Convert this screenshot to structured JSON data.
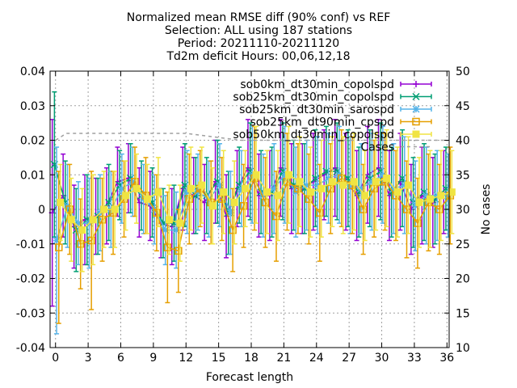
{
  "chart_data": {
    "type": "line",
    "title_lines": [
      "Normalized mean RMSE diff (90% conf) vs REF",
      "Selection: ALL using    187 stations",
      "Period: 20211110-20211120",
      "Td2m deficit    Hours: 00,06,12,18"
    ],
    "xlabel": "Forecast length",
    "ylabel": "",
    "y2label": "No cases",
    "xlim": [
      -0.5,
      36.2
    ],
    "ylim": [
      -0.04,
      0.04
    ],
    "y2lim": [
      10,
      50
    ],
    "x_ticks": [
      0,
      3,
      6,
      9,
      12,
      15,
      18,
      21,
      24,
      27,
      30,
      33,
      36
    ],
    "x_tick_labels": [
      "0",
      "3",
      "6",
      "9",
      "12",
      "15",
      "18",
      "21",
      "24",
      "27",
      "30",
      "33",
      "36"
    ],
    "y_ticks": [
      -0.04,
      -0.03,
      -0.02,
      -0.01,
      0,
      0.01,
      0.02,
      0.03,
      0.04
    ],
    "y_tick_labels": [
      "-0.04",
      "-0.03",
      "-0.02",
      "-0.01",
      "0",
      "0.01",
      "0.02",
      "0.03",
      "0.04"
    ],
    "y2_ticks": [
      10,
      15,
      20,
      25,
      30,
      35,
      40,
      45,
      50
    ],
    "y2_tick_labels": [
      "10",
      "15",
      "20",
      "25",
      "30",
      "35",
      "40",
      "45",
      "50"
    ],
    "grid": true,
    "legend_position": "top-right",
    "x": [
      0,
      1,
      2,
      3,
      4,
      5,
      6,
      7,
      8,
      9,
      10,
      11,
      12,
      13,
      14,
      15,
      16,
      17,
      18,
      19,
      20,
      21,
      22,
      23,
      24,
      25,
      26,
      27,
      28,
      29,
      30,
      31,
      32,
      33,
      34,
      35,
      36
    ],
    "series": [
      {
        "name": "sob0km_dt30min_copolspd",
        "color": "#9400d3",
        "marker": "plus",
        "offset": -0.3,
        "values": [
          -0.001,
          0.004,
          -0.005,
          -0.003,
          -0.002,
          0.001,
          0.008,
          0.009,
          0.002,
          0.001,
          -0.004,
          -0.005,
          0.006,
          0.004,
          0.002,
          0.008,
          -0.002,
          0.006,
          0.012,
          0.004,
          0.004,
          0.012,
          0.006,
          0.006,
          0.008,
          0.01,
          0.012,
          0.008,
          0.004,
          0.01,
          0.012,
          0.004,
          0.008,
          0.0,
          0.004,
          0.002,
          0.005
        ],
        "err": [
          0.027,
          0.012,
          0.012,
          0.013,
          0.011,
          0.011,
          0.01,
          0.01,
          0.01,
          0.01,
          0.01,
          0.011,
          0.012,
          0.011,
          0.011,
          0.012,
          0.012,
          0.011,
          0.014,
          0.012,
          0.013,
          0.014,
          0.013,
          0.013,
          0.014,
          0.013,
          0.014,
          0.014,
          0.013,
          0.014,
          0.014,
          0.013,
          0.014,
          0.013,
          0.014,
          0.013,
          0.012
        ]
      },
      {
        "name": "sob25km_dt30min_copolspd",
        "color": "#009e73",
        "marker": "cross",
        "offset": -0.1,
        "values": [
          0.013,
          0.002,
          -0.006,
          -0.003,
          -0.002,
          0.002,
          0.007,
          0.009,
          0.004,
          0.002,
          -0.004,
          -0.004,
          0.007,
          0.004,
          0.004,
          0.008,
          -0.001,
          0.007,
          0.011,
          0.005,
          0.005,
          0.011,
          0.007,
          0.006,
          0.009,
          0.011,
          0.011,
          0.009,
          0.005,
          0.009,
          0.011,
          0.005,
          0.009,
          0.002,
          0.005,
          0.003,
          0.006
        ],
        "err": [
          0.021,
          0.012,
          0.012,
          0.013,
          0.011,
          0.011,
          0.01,
          0.01,
          0.01,
          0.01,
          0.01,
          0.011,
          0.012,
          0.011,
          0.011,
          0.012,
          0.012,
          0.011,
          0.014,
          0.012,
          0.013,
          0.014,
          0.013,
          0.013,
          0.014,
          0.013,
          0.014,
          0.014,
          0.013,
          0.014,
          0.014,
          0.013,
          0.014,
          0.013,
          0.014,
          0.013,
          0.012
        ]
      },
      {
        "name": "sob25km_dt30min_sarospd",
        "color": "#56b4e9",
        "marker": "star",
        "offset": 0.1,
        "values": [
          -0.009,
          0.001,
          -0.004,
          -0.004,
          -0.001,
          0.0,
          0.006,
          0.008,
          0.003,
          0.0,
          -0.006,
          -0.006,
          0.005,
          0.005,
          0.003,
          0.007,
          -0.001,
          0.006,
          0.01,
          0.004,
          0.006,
          0.01,
          0.005,
          0.007,
          0.007,
          0.009,
          0.01,
          0.007,
          0.006,
          0.008,
          0.01,
          0.006,
          0.007,
          0.001,
          0.004,
          0.004,
          0.004
        ],
        "err": [
          0.027,
          0.012,
          0.012,
          0.013,
          0.011,
          0.011,
          0.01,
          0.01,
          0.01,
          0.01,
          0.01,
          0.011,
          0.012,
          0.011,
          0.011,
          0.012,
          0.012,
          0.011,
          0.014,
          0.012,
          0.013,
          0.014,
          0.013,
          0.013,
          0.014,
          0.013,
          0.014,
          0.014,
          0.013,
          0.014,
          0.014,
          0.013,
          0.014,
          0.013,
          0.014,
          0.013,
          0.012
        ]
      },
      {
        "name": "sob25km_dt90min_cpspd",
        "color": "#e69f00",
        "marker": "square",
        "offset": 0.3,
        "values": [
          -0.011,
          0.0,
          -0.01,
          -0.009,
          -0.003,
          -0.001,
          0.003,
          0.008,
          0.004,
          -0.001,
          -0.011,
          -0.012,
          0.003,
          0.006,
          0.002,
          0.003,
          -0.006,
          0.001,
          0.009,
          0.002,
          -0.002,
          0.008,
          0.006,
          0.003,
          -0.001,
          0.006,
          0.009,
          0.007,
          0.0,
          0.006,
          0.008,
          0.004,
          0.0,
          -0.004,
          0.002,
          0.0,
          0.004
        ],
        "err": [
          0.022,
          0.013,
          0.013,
          0.02,
          0.012,
          0.012,
          0.011,
          0.01,
          0.011,
          0.011,
          0.016,
          0.012,
          0.013,
          0.011,
          0.012,
          0.012,
          0.012,
          0.012,
          0.015,
          0.013,
          0.013,
          0.014,
          0.013,
          0.013,
          0.014,
          0.013,
          0.014,
          0.014,
          0.013,
          0.014,
          0.014,
          0.013,
          0.014,
          0.013,
          0.014,
          0.013,
          0.014
        ]
      },
      {
        "name": "sob50km_dt30min_copolspd",
        "color": "#f0e442",
        "marker": "filled-square",
        "offset": 0.45,
        "values": [
          0.002,
          -0.003,
          -0.006,
          -0.003,
          0.0,
          0.0,
          0.004,
          0.006,
          0.003,
          0.005,
          -0.003,
          -0.004,
          0.006,
          0.007,
          0.001,
          0.005,
          0.002,
          0.006,
          0.01,
          0.005,
          0.004,
          0.01,
          0.008,
          0.005,
          0.006,
          0.008,
          0.007,
          0.008,
          0.004,
          0.008,
          0.009,
          0.005,
          0.007,
          0.002,
          0.003,
          0.004,
          0.005
        ],
        "err": [
          0.011,
          0.012,
          0.012,
          0.013,
          0.011,
          0.011,
          0.01,
          0.01,
          0.01,
          0.01,
          0.01,
          0.011,
          0.012,
          0.011,
          0.011,
          0.012,
          0.012,
          0.011,
          0.014,
          0.012,
          0.013,
          0.014,
          0.013,
          0.013,
          0.014,
          0.013,
          0.014,
          0.014,
          0.013,
          0.014,
          0.014,
          0.013,
          0.014,
          0.013,
          0.014,
          0.013,
          0.012
        ]
      },
      {
        "name": "Cases",
        "color": "#a0a0a0",
        "marker": "none",
        "axis": "y2",
        "x": [
          0,
          1,
          12,
          17,
          36
        ],
        "values": [
          40,
          41,
          41,
          40,
          40
        ]
      }
    ]
  }
}
